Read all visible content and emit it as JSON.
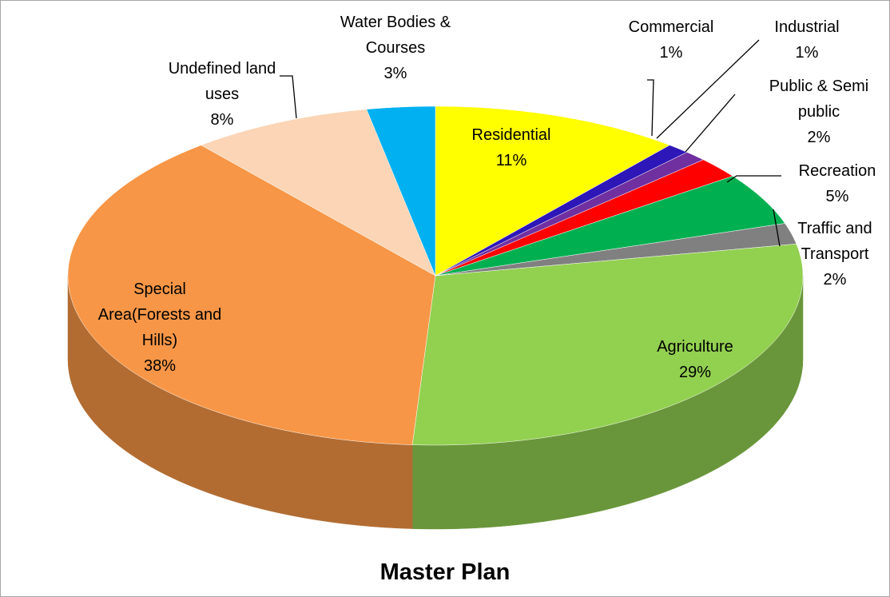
{
  "chart_data": {
    "type": "pie",
    "title": "Master Plan",
    "categories": [
      "Residential",
      "Commercial",
      "Industrial",
      "Public & Semi public",
      "Recreation",
      "Traffic and Transport",
      "Agriculture",
      "Special Area(Forests and Hills)",
      "Undefined land uses",
      "Water Bodies & Courses"
    ],
    "values": [
      11,
      1,
      1,
      2,
      5,
      2,
      29,
      38,
      8,
      3
    ],
    "value_labels": [
      "11%",
      "1%",
      "1%",
      "2%",
      "5%",
      "2%",
      "29%",
      "38%",
      "8%",
      "3%"
    ],
    "colors": [
      "#ffff00",
      "#2e17b8",
      "#7030a0",
      "#ff0000",
      "#00b050",
      "#808080",
      "#92d050",
      "#f79646",
      "#fbd5b5",
      "#00b0f0"
    ]
  }
}
